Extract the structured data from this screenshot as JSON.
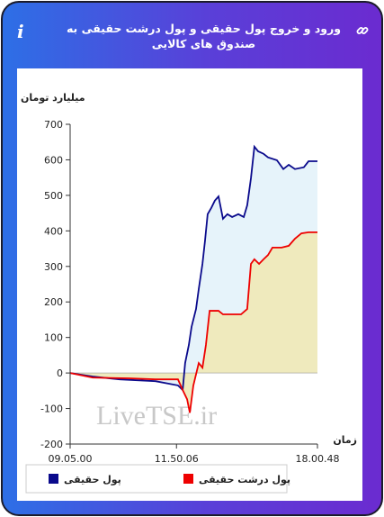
{
  "title": "ورود و خروج پول حقیقی و پول درشت حقیقی به صندوق های کالایی",
  "chart_data": {
    "type": "area",
    "y_label": "میلیارد تومان",
    "x_label": "زمان",
    "watermark": "LiveTSE.ir",
    "xlim": [
      0,
      100
    ],
    "xticks": [
      {
        "value": 0,
        "label": "09.05.00"
      },
      {
        "value": 43,
        "label": "11.50.06"
      },
      {
        "value": 100,
        "label": "18.00.48"
      }
    ],
    "ylim": [
      -200,
      700
    ],
    "yticks": [
      -200,
      -100,
      0,
      100,
      200,
      300,
      400,
      500,
      600,
      700
    ],
    "grid": false,
    "series": [
      {
        "name": "پول حقیقی",
        "color": "#0a0a8c",
        "fill": "#e6f3fa",
        "x": [
          0,
          9.1,
          20,
          34.5,
          43.6,
          45.5,
          46.5,
          48,
          49.1,
          50.9,
          52,
          53.5,
          54.5,
          55.6,
          57.1,
          58.5,
          60,
          61.8,
          63.6,
          65.5,
          68,
          70.2,
          71.6,
          73.1,
          74.5,
          76,
          78.2,
          80,
          83.6,
          86.2,
          88.4,
          90.9,
          94.5,
          96.4,
          100
        ],
        "values": [
          0,
          -10,
          -18,
          -23,
          -35,
          -48,
          28,
          79,
          130,
          180,
          236,
          307,
          370,
          447,
          465,
          485,
          497,
          434,
          447,
          439,
          447,
          439,
          472,
          548,
          637,
          624,
          617,
          607,
          599,
          574,
          586,
          574,
          579,
          596,
          596
        ]
      },
      {
        "name": "پول درشت حقیقی",
        "color": "#ee0000",
        "fill": "#efeabd",
        "x": [
          0,
          9.1,
          23.6,
          34.5,
          43.6,
          45.5,
          47.3,
          48.4,
          49.8,
          52,
          53.5,
          54.9,
          56.4,
          60,
          61.8,
          69.1,
          71.6,
          73.1,
          74.5,
          76.4,
          78.2,
          80,
          81.8,
          85.5,
          88.4,
          90.9,
          93.5,
          96.4,
          100
        ],
        "values": [
          0,
          -13,
          -15,
          -18,
          -18,
          -48,
          -74,
          -112,
          -36,
          28,
          15,
          79,
          175,
          175,
          165,
          165,
          180,
          307,
          320,
          307,
          320,
          332,
          353,
          353,
          358,
          378,
          393,
          396,
          396
        ]
      }
    ]
  }
}
